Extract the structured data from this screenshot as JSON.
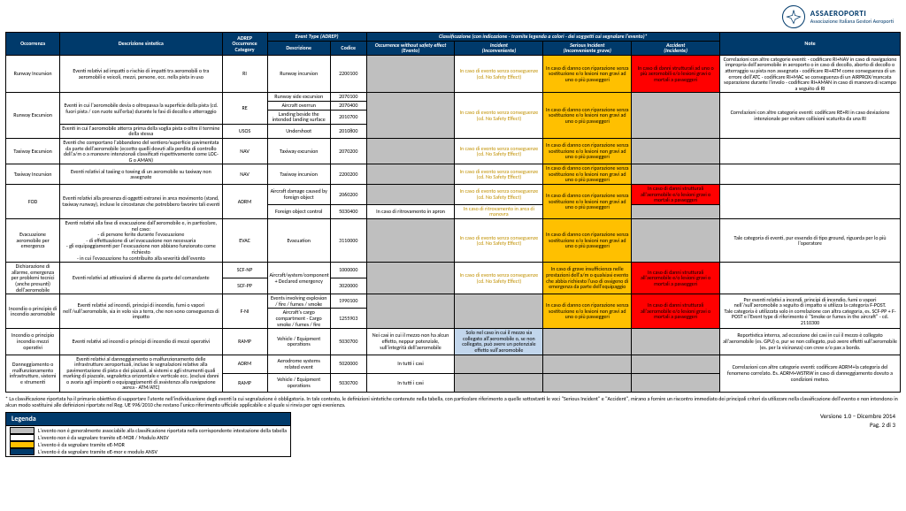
{
  "brand": {
    "name": "ASSAEROPORTI",
    "subtitle": "Associazione Italiana Gestori Aeroporti"
  },
  "columns": {
    "c1": "Occorrenza",
    "c2": "Descrizione sintetica",
    "c3": "ADREP Occurrence Category",
    "eventType": "Event Type (ADREP)",
    "c4": "Descrizione",
    "c5": "Codice",
    "class": "Classificazione (con indicazione - tramite legenda a colori - dei soggetti cui segnalare l'evento)*",
    "cls1a": "Occurrence without safety effect",
    "cls1b": "(Evento)",
    "cls2a": "Incident",
    "cls2b": "(Inconveniente)",
    "cls3a": "Serious Incident",
    "cls3b": "(Inconveniente grave)",
    "cls4a": "Accident",
    "cls4b": "(Incidente)",
    "note": "Note"
  },
  "rows": {
    "r1": {
      "occ": "Runway Incursion",
      "desc": "Eventi relativi ad impatti o rischio di impatti tra aeromobili o tra aeromobili e veicoli, mezzi, persone, ecc. nella pista in uso",
      "cat": "RI",
      "et": "Runway incursion",
      "code": "2200100",
      "inc": "In caso di evento senza conseguenze (cd. No Safety Effect)",
      "ser": "In caso di danno con riparazione senza sostituzione e/o lesioni non gravi ad uno o più passeggeri",
      "acc": "In caso di danni strutturali ad uno o più aeromobili e/o lesioni gravi o mortali a passeggeri",
      "note": "Correlazioni con altre categorie eventi:\n- codificare RI+NAV in caso di navigazione impropria dell'aeromobile in aeroporto o in caso di decollo, aborto di decollo o atterraggio su pista non assegnata\n- codificare RI+ATM come conseguenza di un errore dell'ATC\n- codificare RI+MAC se conseguenza di un AIRPROX/mancata separazione durante l'involo\n- codificare RI+AMAN in caso di manovra di scampo a seguito di RI"
    },
    "r2": {
      "occ": "Runway Excursion",
      "desc": "Eventi in cui l'aeromobile devia o oltrepassa la superficie della pista (cd. fuori pista / con ruote sull'erba) durante le fasi di decollo e atterraggio",
      "cat": "RE",
      "et1": "Runway side excursion",
      "code1": "2070100",
      "et2": "Aircraft overrun",
      "code2": "2070400",
      "et3": "Landing beside the intended landing surface",
      "code3": "2010700",
      "desc2": "Eventi in cui l'aeromobile atterra prima della soglia pista o oltre il termine della stessa",
      "cat2": "USOS",
      "et4": "Undershoot",
      "code4": "2010800",
      "inc": "In caso di evento senza conseguenze (cd. No Safety Effect)",
      "ser": "In caso di danno con riparazione senza sostituzione e/o lesioni non gravi ad uno o più passeggeri",
      "note": "Correlazioni con altre categorie eventi: codificare RE+RI in caso deviazione intenzionale per evitare collisioni scaturita da una RI"
    },
    "r3": {
      "occ": "Taxiway Excursion",
      "desc": "Eventi che comportano l'abbandono del sentiero/superficie pavimentata da parte dell'aeromobile (eccetto quelli dovuti alla perdita di controllo dell'a/m o a manovre intenzionali classificati rispettivamente come LOC-G o AMAN)",
      "cat": "NAV",
      "et": "Taxiway excursion",
      "code": "2070200",
      "inc": "In caso di evento senza conseguenze (cd. No Safety Effect)",
      "ser": "In caso di danno con riparazione senza sostituzione e/o lesioni non gravi ad uno o più passeggeri"
    },
    "r4": {
      "occ": "Taxiway Incursion",
      "desc": "Eventi relativi al taxiing o towing di un aeromobile su taxiway non assegnate",
      "cat": "NAV",
      "et": "Taxiway incursion",
      "code": "2200200",
      "inc": "In caso di evento senza conseguenze (cd. No Safety Effect)",
      "ser": "In caso di danno con riparazione senza sostituzione e/o lesioni non gravi ad uno o più passeggeri"
    },
    "r5": {
      "occ": "FOD",
      "desc": "Eventi relativi alla presenza di oggetti estranei in area movimento (stand, taxiway runway), incluse le circostanze che potrebbero favorire tali eventi",
      "cat": "ADRM",
      "et1": "Aircraft damage caused by foreign object",
      "code1": "2060200",
      "et2": "Foreign object control",
      "code2": "5030400",
      "nse1": "In caso di ritrovamento in apron",
      "inc1": "In caso di evento senza conseguenze (cd. No Safety Effect)",
      "inc2": "In caso di ritrovamento in area di manovra",
      "ser": "In caso di danno con riparazione senza sostituzione e/o lesioni non gravi ad uno o più passeggeri",
      "acc": "In caso di danni strutturali all'aeromobile e/o lesioni gravi o mortali a passeggeri"
    },
    "r6": {
      "occ": "Evacuazione aeromobile per emergenza",
      "desc": "Eventi relativi alla fase di evacuazione dall'aeromobile e, in particolare, nel caso:\n- di persone ferite durante l'evacuazione\n- di effettuazione di un'evacuazione non necessaria\n- gli equipaggiamenti per l'evacuazione non abbiano funzionato come richiesto\n- in cui l'evacuazione ha contribuito alla severità dell'evento",
      "cat": "EVAC",
      "et": "Evacuation",
      "code": "3110000",
      "inc": "In caso di evento senza conseguenze (cd. No Safety Effect)",
      "ser": "In caso di danno con riparazione senza sostituzione e/o lesioni non gravi ad uno o più passeggeri",
      "note": "Tale categoria di eventi, pur essendo di tipo ground, riguarda per lo più l'operatore"
    },
    "r7": {
      "occ": "Dichiarazione di allarme, emergenza per problemi tecnici (anche presunti) dell'aeromobile",
      "desc": "Eventi relativi ad attivazioni di allarme da parte del comandante",
      "cat1": "SCF-NP",
      "cat2": "SCF-PP",
      "et": "Aircraft/system/component + Declared emergency",
      "code1": "1000000",
      "code2": "3020000",
      "inc": "In caso di evento senza conseguenze (cd. No Safety Effect)",
      "ser": "In caso di grave insufficienza nelle prestazioni dell'a/m o qualsiasi evento che abbia richiesto l'uso di ossigeno di emergenza da parte dell'equipaggio",
      "acc": "In caso di danni strutturali all'aeromobile e/o lesioni gravi o mortali a passeggeri"
    },
    "r8": {
      "occ": "Incendio o principio di incendio aeromobile",
      "desc": "Eventi relativi ad incendi, principi di incendio, fumi o vapori nell'/sull'aeromobile, sia in volo sia a terra, che non sono conseguenza di impatto",
      "cat": "F-NI",
      "et1": "Events involving explosion / fire / fumes / smoke",
      "code1": "1990100",
      "et2": "Aircraft's cargo compartment - Cargo smoke / fumes / fire",
      "code2": "1255903",
      "ser": "In caso di danno con riparazione senza sostituzione e/o lesioni non gravi ad uno o più passeggeri",
      "acc": "In caso di danni strutturali all'aeromobile e/o lesioni gravi o mortali a passeggeri",
      "note": "Per eventi relativi a incendi, principi di incendio, fumi o vapori nell'/sull'aeromobile a seguito di impatto si utilizza la categoria F-POST.\nTale categoria è utilizzata solo in correlazione con altra categoria, es. SCF-PP + F-POST e l'Event type di riferimento è \"Smoke or fumes in the aircraft\" - cd. 2110300"
    },
    "r9": {
      "occ": "Incendio o principio incendio mezzi operativi",
      "desc": "Eventi relativi ad incendi o principi di incendio di mezzi operativi",
      "cat": "RAMP",
      "et": "Vehicle / Equipment operations",
      "code": "5030700",
      "nse": "Nei casi in cui il mezzo non ha alcun effetto, neppur potenziale, sull'integrità dell'aeromobile",
      "inc": "Solo nel caso in cui il mezzo sia collegato all'aeromobile o, se non collegato, può avere un potenziale effetto sull'aeromobile",
      "note": "Reportistica interna, ad eccezione dei casi in cui il mezzo è collegato all'aeromobile (es. GPU) o, pur se non collegato, può avere effetti sull'aeromobile (es. per la vicinanza) con crew e/o pax a bordo."
    },
    "r10": {
      "occ": "Danneggiamento o malfunzionamento infrastrutture, sistemi e strumenti",
      "desc": "Eventi relativi al danneggiamento o malfunzionamento delle infrastrutture aeroportuali, incluse le segnalazioni relative alla pavimentazione di pista e dei piazzali, ai sistemi e agli strumenti quali marking di piazzale, segnaletica orizzontale e verticale ecc. (esclusi danni o avaria agli impianti o equipaggiamenti di assistenza alla navigazione aerea - ATM/ATC)",
      "cat1": "ADRM",
      "et1": "Aerodrome systems related event",
      "code1pre": "5020000",
      "nse1": "In tutti i casi",
      "cat2": "RAMP",
      "et2": "Vehicle / Equipment operations",
      "code2": "5030700",
      "nse2": "In tutti i casi",
      "note": "Correlazioni con altre categorie eventi: codificare ADRM+la categoria del fenomeno correlato. Es. ADRM+WSTRW in caso di danneggiamento dovuto a condizioni meteo."
    }
  },
  "footnote": "* La classificazione riportata ha il primario obiettivo di supportare l'utente nell'individuazione degli eventi la cui segnalazione è obbligatoria. In tale contesto, le definizioni sintetiche contenute nella tabella, con particolare riferimento a quelle sottostanti le voci \"Serious Incident\" e \"Accident\", mirano a fornire un riscontro immediato dei principali criteri da utilizzare nella classificazione dell'evento e non intendono in alcun modo sostituirsi alle definizioni riportate nel Reg. UE 996/2010 che restano l'unico riferimento ufficiale applicabile e al quale si rinvia per ogni evenienza.",
  "legend": {
    "title": "Legenda",
    "rows": [
      {
        "color": "#bfbfbf",
        "label": "L'evento non è generalmente associabile alla classificazione riportata nella corrispondente intestazione della tabella"
      },
      {
        "color": "#ffffff",
        "label": "L'evento non è da segnalare tramite eE-MOR / Modulo ANSV"
      },
      {
        "color": "#ffc000",
        "label": "L'evento è da segnalare tramite eE-MOR"
      },
      {
        "color": "#003a6b",
        "label": "L'evento è da segnalare tramite eE-mor e modulo ANSV"
      }
    ]
  },
  "version": {
    "line1": "Versione 1.0 – Dicembre 2014",
    "line2": "Pag. 2 di 3"
  }
}
